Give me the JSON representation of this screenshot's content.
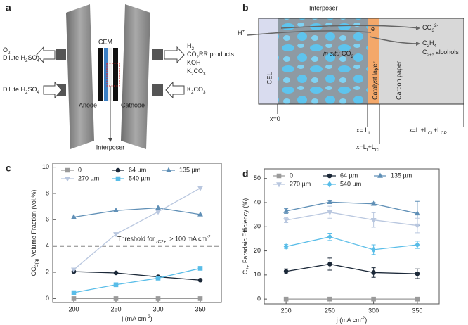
{
  "diagram_a": {
    "panel": "a",
    "left_top": [
      [
        "O",
        {
          "sub": "2"
        }
      ],
      [
        "Dilute H",
        {
          "sub": "2"
        },
        "SO",
        {
          "sub": "4"
        }
      ]
    ],
    "left_bottom": [
      "Dilute H",
      {
        "sub": "2"
      },
      "SO",
      {
        "sub": "4"
      }
    ],
    "right_top": [
      [
        "H",
        {
          "sub": "2"
        }
      ],
      [
        "CO",
        {
          "sub": "2"
        },
        "RR products"
      ],
      [
        "KOH"
      ],
      [
        "K",
        {
          "sub": "2"
        },
        "CO",
        {
          "sub": "3"
        }
      ]
    ],
    "right_bottom": [
      "K",
      {
        "sub": "2"
      },
      "CO",
      {
        "sub": "3"
      }
    ],
    "membrane": "CEM",
    "anode": "Anode",
    "cathode": "Cathode",
    "interposer": "Interposer"
  },
  "diagram_b": {
    "panel": "b",
    "interposer": "Interposer",
    "proton": [
      "H",
      {
        "sup": "+"
      }
    ],
    "carbonate": [
      "CO",
      {
        "sub": "3"
      },
      {
        "sup": "2-"
      }
    ],
    "ethylene": [
      "C",
      {
        "sub": "2"
      },
      "H",
      {
        "sub": "4"
      }
    ],
    "products": [
      "C",
      {
        "sub": "2+"
      },
      ", alcohols"
    ],
    "in_situ": [
      {
        "i": "in situ"
      },
      " CO",
      {
        "sub": "2"
      }
    ],
    "electron": [
      "e",
      {
        "sup": "-"
      }
    ],
    "layers": [
      "CEL",
      "Catalyst layer",
      "Carbon paper"
    ],
    "positions": [
      [
        "x=0"
      ],
      [
        "x= L",
        {
          "sub": "I"
        }
      ],
      [
        "x=L",
        {
          "sub": "I"
        },
        "+L",
        {
          "sub": "CL"
        }
      ],
      [
        "x=L",
        {
          "sub": "I"
        },
        "+L",
        {
          "sub": "CL"
        },
        "+L",
        {
          "sub": "CP"
        }
      ]
    ]
  },
  "chart_data": [
    {
      "type": "line",
      "panel": "c",
      "xlabel": [
        "j (mA cm",
        {
          "sup": "-2"
        },
        ")"
      ],
      "ylabel": [
        "CO",
        {
          "sub": "2(g)"
        },
        " Volume Fraction (vol.%)"
      ],
      "x": [
        200,
        250,
        300,
        350
      ],
      "xlim": [
        175,
        375
      ],
      "xticks": [
        200,
        250,
        300,
        350
      ],
      "ylim": [
        -0.3,
        10.3
      ],
      "yticks": [
        0,
        2,
        4,
        6,
        8,
        10
      ],
      "threshold": {
        "value": 4,
        "label": [
          "Threshold for j",
          {
            "sub": "C2+"
          },
          ", > 100 mA cm",
          {
            "sup": "-2"
          }
        ]
      },
      "series": [
        {
          "name": "0",
          "color": "#9a9a9a",
          "marker": "square",
          "values": [
            0,
            0,
            0,
            0
          ]
        },
        {
          "name": "64 µm",
          "color": "#1b2838",
          "marker": "circle",
          "values": [
            2.05,
            1.95,
            1.65,
            1.4
          ]
        },
        {
          "name": "135 µm",
          "color": "#5f8fb6",
          "marker": "triangle-up",
          "values": [
            6.2,
            6.7,
            6.9,
            6.4
          ]
        },
        {
          "name": "270 µm",
          "color": "#b9c7df",
          "marker": "triangle-down",
          "values": [
            2.2,
            4.9,
            6.6,
            8.4
          ]
        },
        {
          "name": "540 µm",
          "color": "#59bde8",
          "marker": "square",
          "values": [
            0.45,
            1.05,
            1.55,
            2.3
          ]
        }
      ]
    },
    {
      "type": "line",
      "panel": "d",
      "xlabel": [
        "j (mA cm",
        {
          "sup": "-2"
        },
        ")"
      ],
      "ylabel": [
        "C",
        {
          "sub": "2+"
        },
        " Faradaic Efficiency (%)"
      ],
      "x": [
        200,
        250,
        300,
        350
      ],
      "xlim": [
        175,
        375
      ],
      "xticks": [
        200,
        250,
        300,
        350
      ],
      "ylim": [
        -2,
        54
      ],
      "yticks": [
        0,
        10,
        20,
        30,
        40,
        50
      ],
      "series": [
        {
          "name": "0",
          "color": "#9a9a9a",
          "marker": "square",
          "values": [
            0,
            0,
            0,
            0
          ],
          "errors": [
            0,
            0,
            0,
            0
          ]
        },
        {
          "name": "64 µm",
          "color": "#1b2838",
          "marker": "circle",
          "values": [
            11.5,
            14.5,
            11,
            10.5
          ],
          "errors": [
            1,
            2.5,
            2,
            2
          ]
        },
        {
          "name": "135 µm",
          "color": "#5f8fb6",
          "marker": "triangle-up",
          "values": [
            36.5,
            40.2,
            39.5,
            35.5
          ],
          "errors": [
            1,
            0.5,
            0.5,
            5
          ]
        },
        {
          "name": "270 µm",
          "color": "#b9c7df",
          "marker": "triangle-down",
          "values": [
            32.7,
            36,
            32.8,
            30.5
          ],
          "errors": [
            1,
            2.5,
            3,
            3
          ]
        },
        {
          "name": "540 µm",
          "color": "#59bde8",
          "marker": "diamond",
          "values": [
            21.8,
            25.8,
            20.5,
            22.5
          ],
          "errors": [
            0.8,
            1.5,
            2,
            1.5
          ]
        }
      ]
    }
  ]
}
